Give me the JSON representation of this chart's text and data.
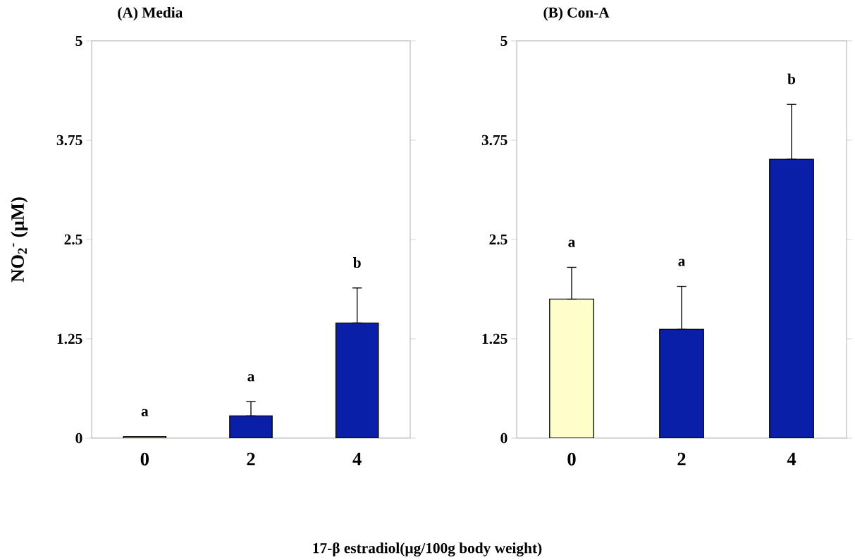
{
  "chart_data": [
    {
      "type": "bar",
      "title": "(A) Media",
      "ylabel": "NO$_{2}$$^{-}$ (µM)",
      "xlabel": "17-β estradiol(µg/100g body weight)",
      "categories": [
        "0",
        "2",
        "4"
      ],
      "values": [
        0.02,
        0.28,
        1.45
      ],
      "colors": [
        "#ffffcc",
        "#0a1fa8",
        "#0a1fa8"
      ],
      "errors": [
        null,
        [
          0.28,
          0.46
        ],
        [
          1.45,
          1.89
        ]
      ],
      "ylim": [
        0,
        5
      ],
      "yticks": [
        0,
        1.25,
        2.5,
        3.75,
        5
      ],
      "grid": false,
      "annotations": [
        "a",
        "a",
        "b"
      ]
    },
    {
      "type": "bar",
      "title": "(B) Con-A",
      "categories": [
        "0",
        "2",
        "4"
      ],
      "values": [
        1.75,
        1.37,
        3.51
      ],
      "colors": [
        "#ffffcc",
        "#0a1fa8",
        "#0a1fa8"
      ],
      "errors": [
        [
          1.75,
          2.15
        ],
        [
          1.37,
          1.91
        ],
        [
          3.51,
          4.2
        ]
      ],
      "ylim": [
        0,
        5
      ],
      "yticks": [
        0,
        1.25,
        2.5,
        3.75,
        5
      ],
      "grid": false,
      "annotations": [
        "a",
        "a",
        "b"
      ]
    }
  ]
}
